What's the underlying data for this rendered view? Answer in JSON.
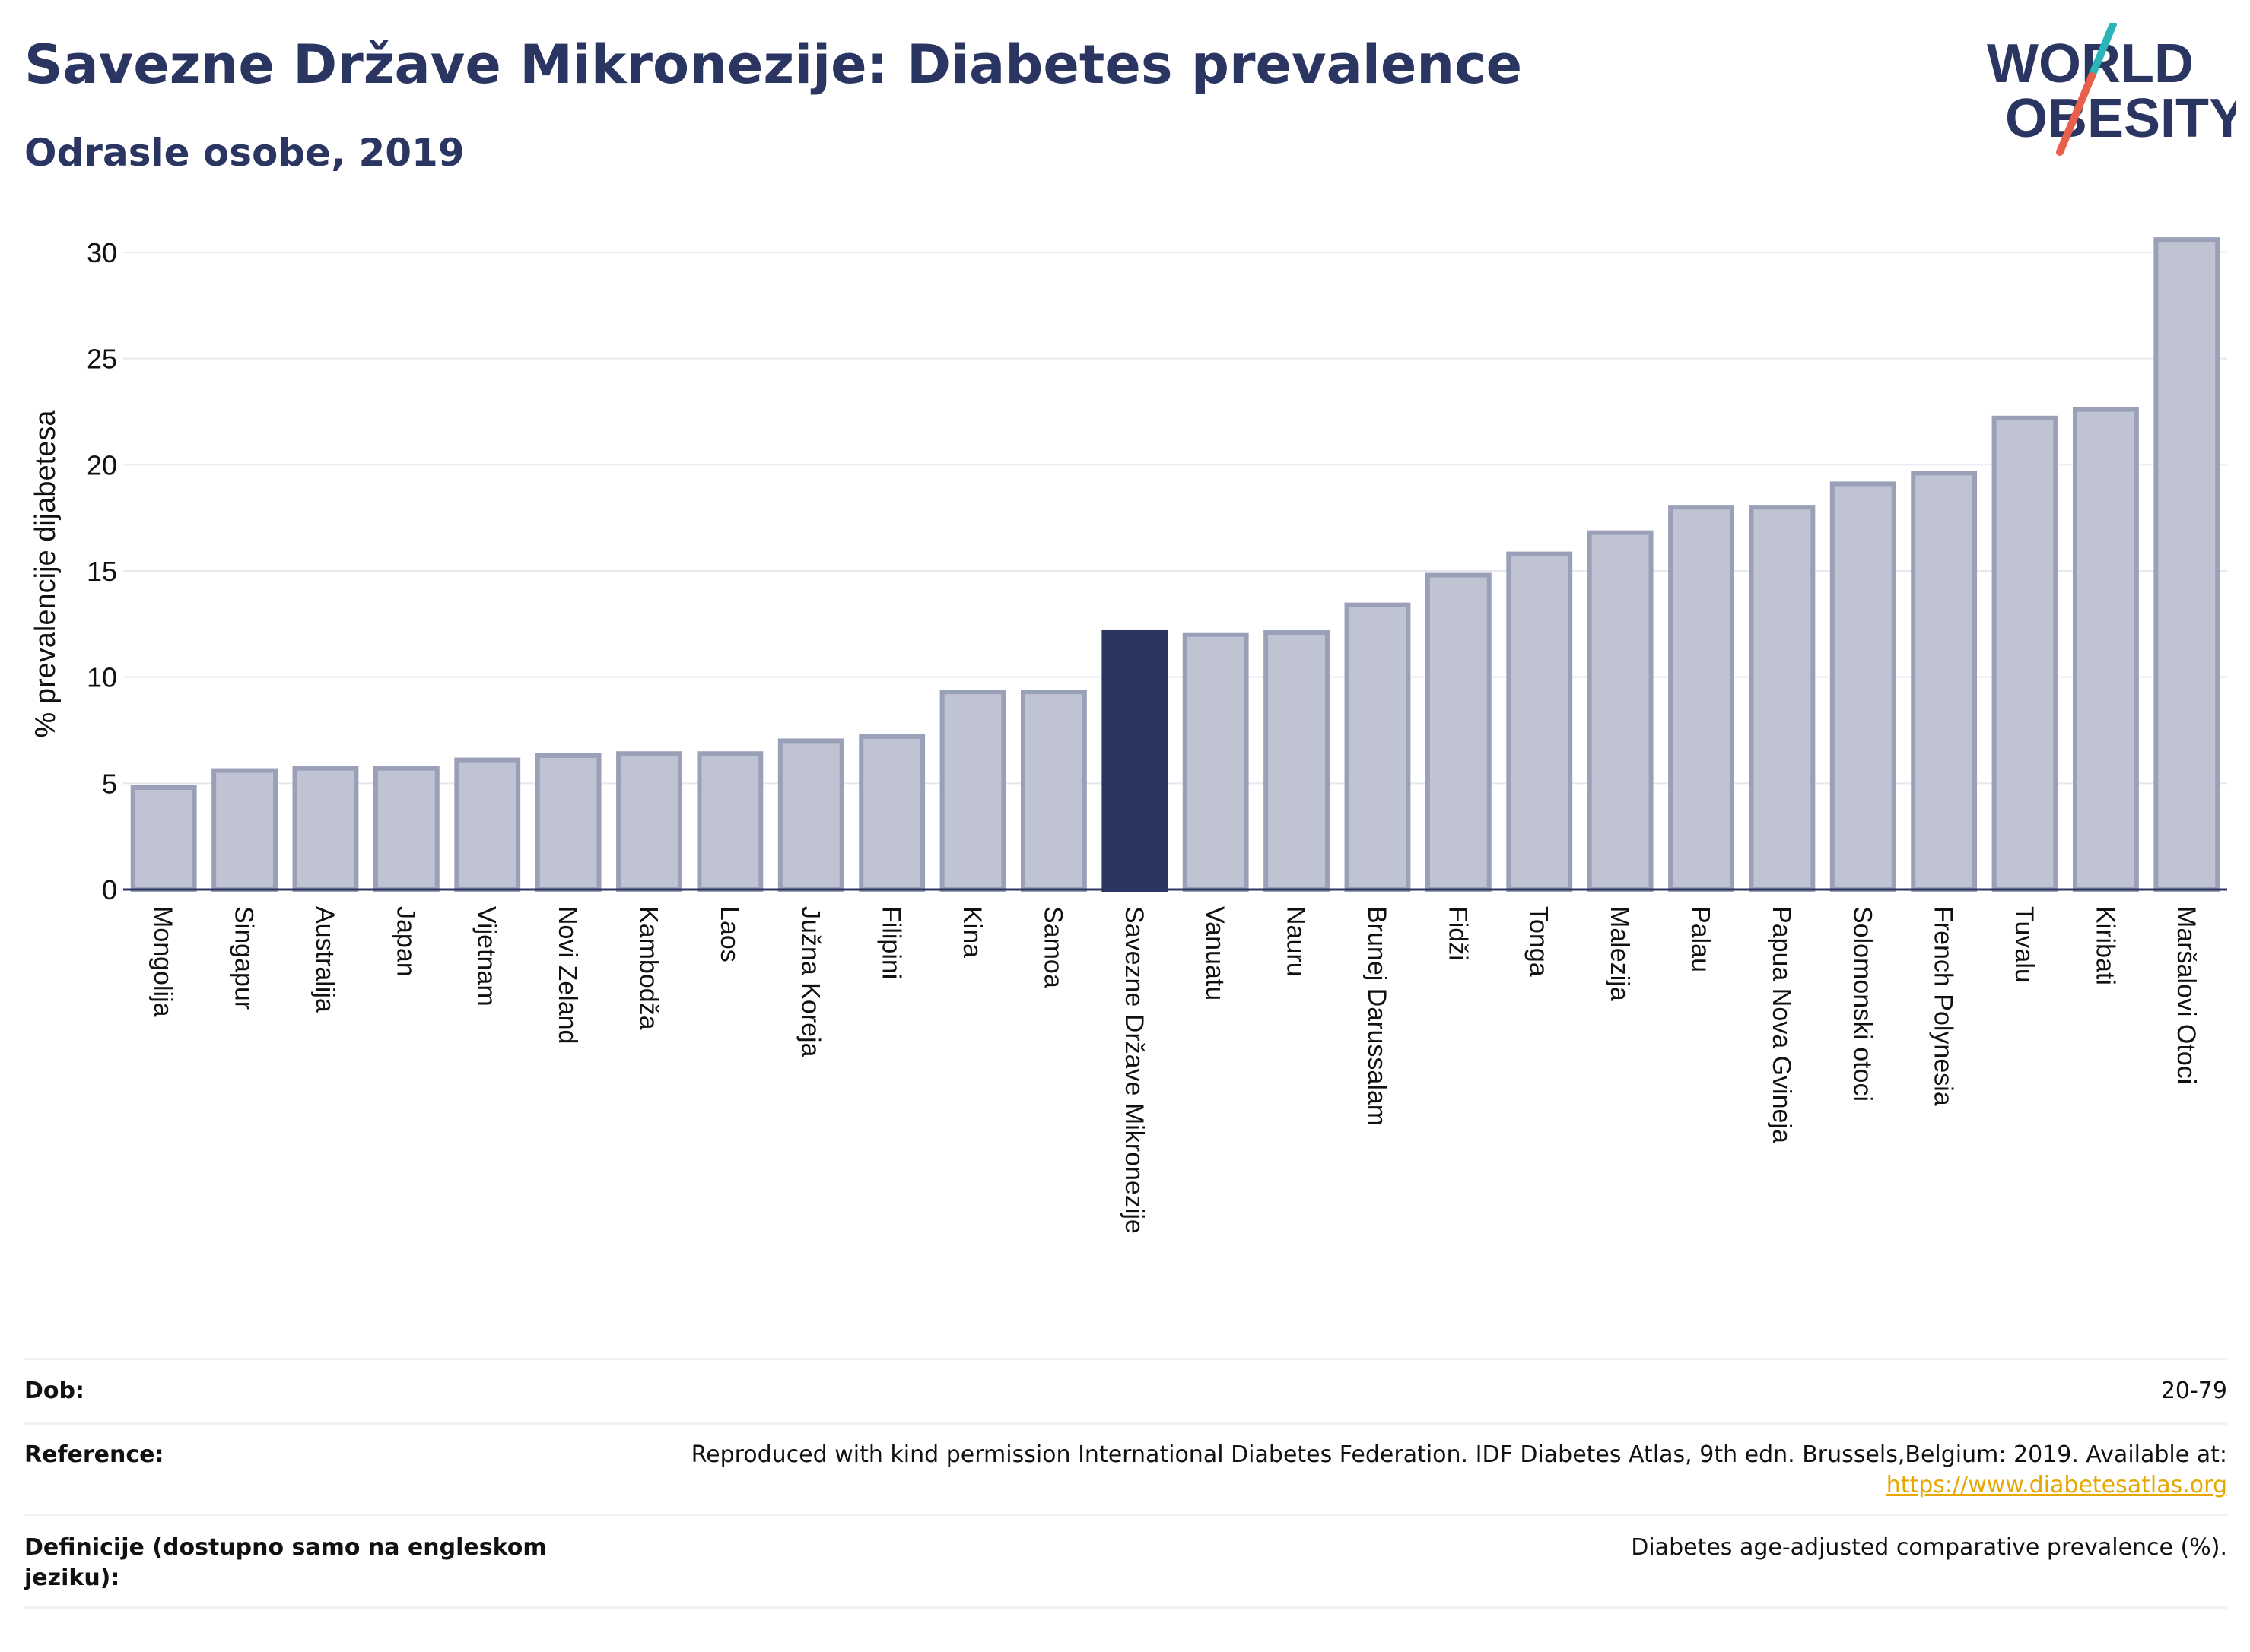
{
  "header": {
    "title": "Savezne Države Mikronezije: Diabetes prevalence",
    "subtitle": "Odrasle osobe, 2019"
  },
  "logo": {
    "line1": "WORLD",
    "line2": "OBESITY"
  },
  "colors": {
    "highlight": "#2b3561",
    "bar_fill": "#c0c3d1",
    "bar_stroke": "#9aa0b8",
    "title": "#2b3561",
    "logo_teal": "#2bb5b8",
    "logo_red": "#e8604c",
    "link": "#e5a700"
  },
  "chart_data": {
    "type": "bar",
    "title": "",
    "xlabel": "",
    "ylabel": "% prevalencije dijabetesa",
    "ylim": [
      0,
      31.5
    ],
    "yticks": [
      0,
      5,
      10,
      15,
      20,
      25,
      30
    ],
    "grid": true,
    "highlight": "Savezne Države Mikronezije",
    "categories": [
      "Mongolija",
      "Singapur",
      "Australija",
      "Japan",
      "Vijetnam",
      "Novi Zeland",
      "Kambodža",
      "Laos",
      "Južna Koreja",
      "Filipini",
      "Kina",
      "Samoa",
      "Savezne Države Mikronezije",
      "Vanuatu",
      "Nauru",
      "Brunej Darussalam",
      "Fidži",
      "Tonga",
      "Malezija",
      "Palau",
      "Papua Nova Gvineja",
      "Solomonski otoci",
      "French Polynesia",
      "Tuvalu",
      "Kiribati",
      "Maršalovi Otoci"
    ],
    "values": [
      4.8,
      5.6,
      5.7,
      5.7,
      6.1,
      6.3,
      6.4,
      6.4,
      7.0,
      7.2,
      9.3,
      9.3,
      12.1,
      12.0,
      12.1,
      13.4,
      14.8,
      15.8,
      16.8,
      18.0,
      18.0,
      19.1,
      19.6,
      22.2,
      22.6,
      30.6
    ]
  },
  "info": {
    "age_label": "Dob:",
    "age_value": "20-79",
    "reference_label": "Reference:",
    "reference_text": "Reproduced with kind permission International Diabetes Federation. IDF Diabetes Atlas, 9th edn. Brussels,Belgium: 2019. Available at:",
    "reference_link": "https://www.diabetesatlas.org",
    "definition_label": "Definicije (dostupno samo na engleskom jeziku):",
    "definition_value": "Diabetes age-adjusted comparative prevalence (%)."
  }
}
